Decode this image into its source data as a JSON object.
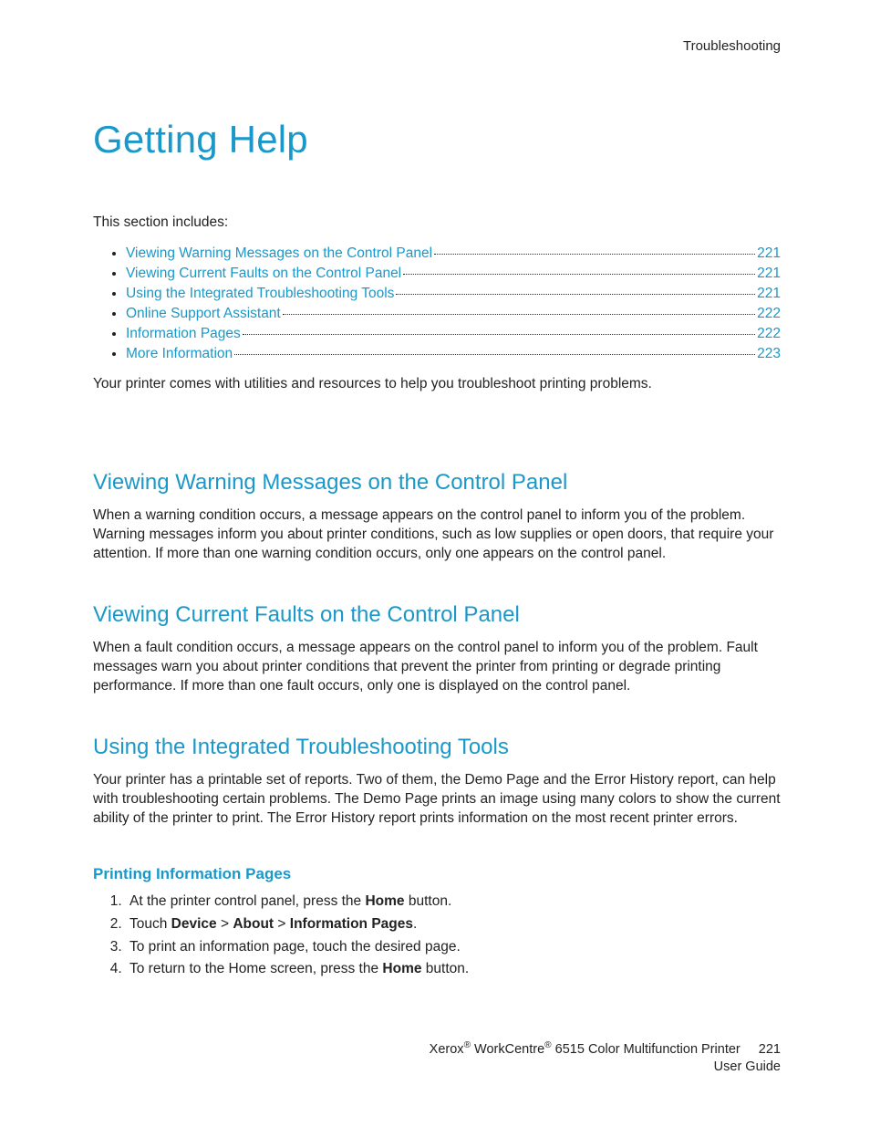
{
  "colors": {
    "accent": "#1a98c9",
    "text": "#222222",
    "background": "#ffffff"
  },
  "header": {
    "right": "Troubleshooting"
  },
  "title": "Getting Help",
  "intro": "This section includes:",
  "toc": [
    {
      "label": "Viewing Warning Messages on the Control Panel",
      "page": "221"
    },
    {
      "label": "Viewing Current Faults on the Control Panel",
      "page": "221"
    },
    {
      "label": "Using the Integrated Troubleshooting Tools",
      "page": "221"
    },
    {
      "label": "Online Support Assistant",
      "page": "222"
    },
    {
      "label": "Information Pages",
      "page": "222"
    },
    {
      "label": "More Information",
      "page": "223"
    }
  ],
  "lead": "Your printer comes with utilities and resources to help you troubleshoot printing problems.",
  "sections": [
    {
      "heading": "Viewing Warning Messages on the Control Panel",
      "body": "When a warning condition occurs, a message appears on the control panel to inform you of the problem. Warning messages inform you about printer conditions, such as low supplies or open doors, that require your attention. If more than one warning condition occurs, only one appears on the control panel."
    },
    {
      "heading": "Viewing Current Faults on the Control Panel",
      "body": "When a fault condition occurs, a message appears on the control panel to inform you of the problem. Fault messages warn you about printer conditions that prevent the printer from printing or degrade printing performance. If more than one fault occurs, only one is displayed on the control panel."
    },
    {
      "heading": "Using the Integrated Troubleshooting Tools",
      "body": "Your printer has a printable set of reports. Two of them, the Demo Page and the Error History report, can help with troubleshooting certain problems. The Demo Page prints an image using many colors to show the current ability of the printer to print. The Error History report prints information on the most recent printer errors."
    }
  ],
  "sub": {
    "heading": "Printing Information Pages",
    "steps_html": [
      "At the printer control panel, press the <b>Home</b> button.",
      "Touch <b>Device</b> > <b>About</b> > <b>Information Pages</b>.",
      "To print an information page, touch the desired page.",
      "To return to the Home screen, press the <b>Home</b> button."
    ]
  },
  "footer": {
    "line1_html": "Xerox<sup>®</sup> WorkCentre<sup>®</sup> 6515 Color Multifunction Printer",
    "line2": "User Guide",
    "page": "221"
  }
}
